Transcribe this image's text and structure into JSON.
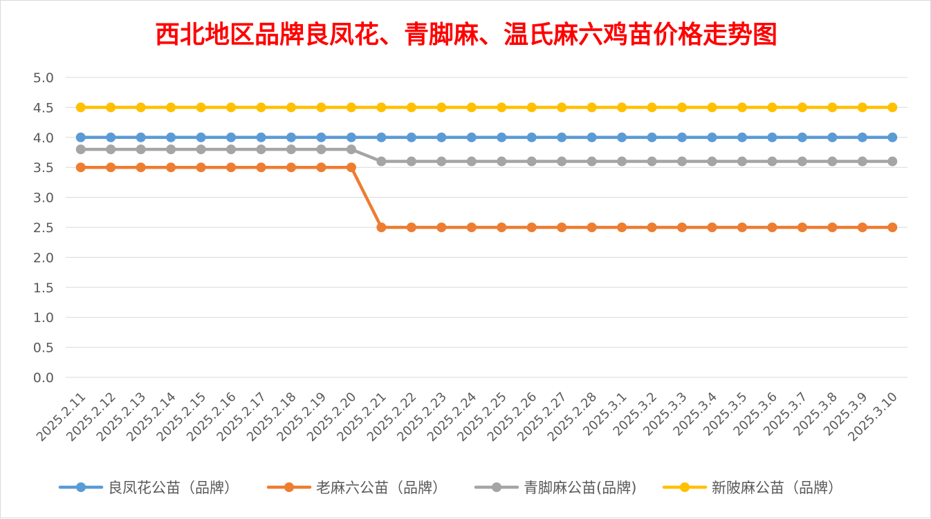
{
  "chart_data": {
    "type": "line",
    "title": "西北地区品牌良凤花、青脚麻、温氏麻六鸡苗价格走势图",
    "xlabel": "",
    "ylabel": "",
    "ylim": [
      0,
      5
    ],
    "yticks": [
      "0.0",
      "0.5",
      "1.0",
      "1.5",
      "2.0",
      "2.5",
      "3.0",
      "3.5",
      "4.0",
      "4.5",
      "5.0"
    ],
    "grid": true,
    "legend_position": "bottom",
    "categories": [
      "2025.2.11",
      "2025.2.12",
      "2025.2.13",
      "2025.2.14",
      "2025.2.15",
      "2025.2.16",
      "2025.2.17",
      "2025.2.18",
      "2025.2.19",
      "2025.2.20",
      "2025.2.21",
      "2025.2.22",
      "2025.2.23",
      "2025.2.24",
      "2025.2.25",
      "2025.2.26",
      "2025.2.27",
      "2025.2.28",
      "2025.3.1",
      "2025.3.2",
      "2025.3.3",
      "2025.3.4",
      "2025.3.5",
      "2025.3.6",
      "2025.3.7",
      "2025.3.8",
      "2025.3.9",
      "2025.3.10"
    ],
    "series": [
      {
        "name": "良凤花公苗（品牌）",
        "color": "#5b9bd5",
        "values": [
          4.0,
          4.0,
          4.0,
          4.0,
          4.0,
          4.0,
          4.0,
          4.0,
          4.0,
          4.0,
          4.0,
          4.0,
          4.0,
          4.0,
          4.0,
          4.0,
          4.0,
          4.0,
          4.0,
          4.0,
          4.0,
          4.0,
          4.0,
          4.0,
          4.0,
          4.0,
          4.0,
          4.0
        ]
      },
      {
        "name": "老麻六公苗（品牌）",
        "color": "#ed7d31",
        "values": [
          3.5,
          3.5,
          3.5,
          3.5,
          3.5,
          3.5,
          3.5,
          3.5,
          3.5,
          3.5,
          2.5,
          2.5,
          2.5,
          2.5,
          2.5,
          2.5,
          2.5,
          2.5,
          2.5,
          2.5,
          2.5,
          2.5,
          2.5,
          2.5,
          2.5,
          2.5,
          2.5,
          2.5
        ]
      },
      {
        "name": "青脚麻公苗(品牌)",
        "color": "#a5a5a5",
        "values": [
          3.8,
          3.8,
          3.8,
          3.8,
          3.8,
          3.8,
          3.8,
          3.8,
          3.8,
          3.8,
          3.6,
          3.6,
          3.6,
          3.6,
          3.6,
          3.6,
          3.6,
          3.6,
          3.6,
          3.6,
          3.6,
          3.6,
          3.6,
          3.6,
          3.6,
          3.6,
          3.6,
          3.6
        ]
      },
      {
        "name": "新陂麻公苗（品牌）",
        "color": "#ffc000",
        "values": [
          4.5,
          4.5,
          4.5,
          4.5,
          4.5,
          4.5,
          4.5,
          4.5,
          4.5,
          4.5,
          4.5,
          4.5,
          4.5,
          4.5,
          4.5,
          4.5,
          4.5,
          4.5,
          4.5,
          4.5,
          4.5,
          4.5,
          4.5,
          4.5,
          4.5,
          4.5,
          4.5,
          4.5
        ]
      }
    ]
  }
}
